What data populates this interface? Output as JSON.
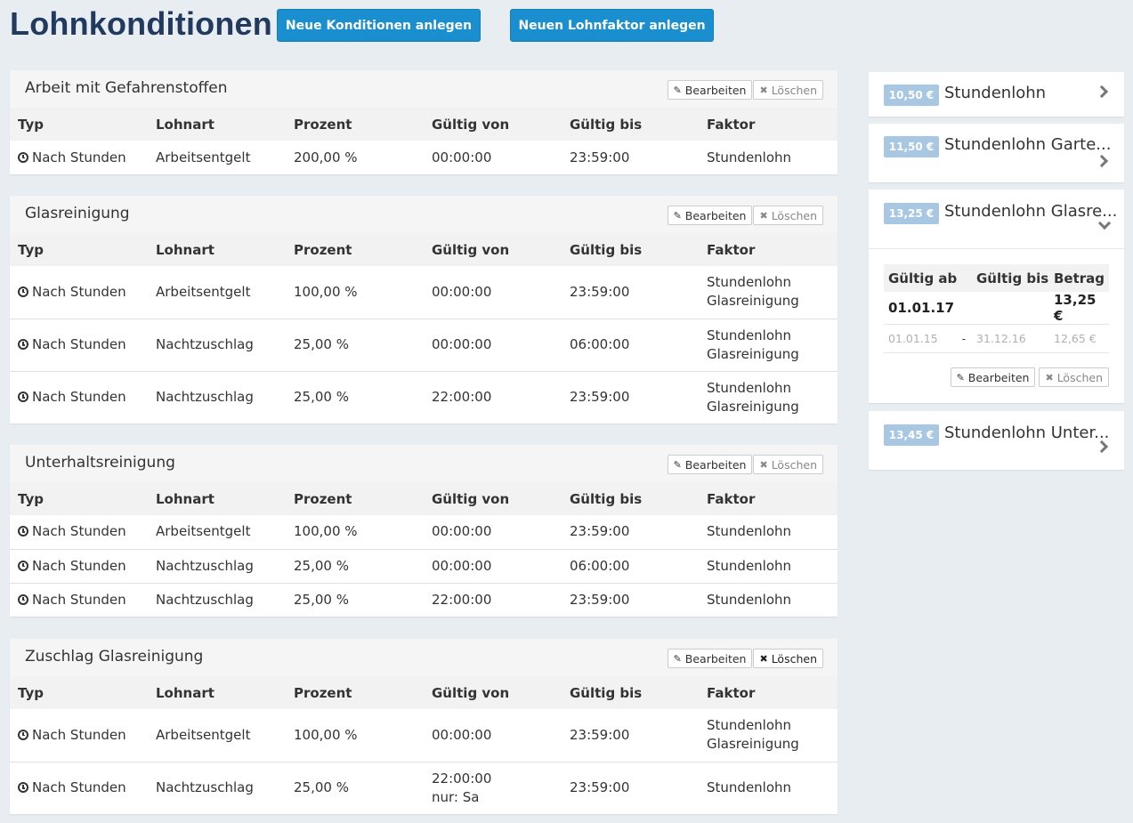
{
  "header": {
    "title": "Lohnkonditionen",
    "new_conditions_label": "Neue Konditionen anlegen",
    "new_factor_label": "Neuen Lohnfaktor anlegen"
  },
  "common": {
    "edit_label": "Bearbeiten",
    "delete_label": "Löschen",
    "columns": [
      "Typ",
      "Lohnart",
      "Prozent",
      "Gültig von",
      "Gültig bis",
      "Faktor"
    ]
  },
  "conditions": [
    {
      "title": "Arbeit mit Gefahrenstoffen",
      "rows": [
        {
          "typ": "Nach Stunden",
          "lohnart": "Arbeitsentgelt",
          "prozent": "200,00 %",
          "von": "00:00:00",
          "von2": "",
          "bis": "23:59:00",
          "faktor": "Stundenlohn",
          "faktor2": ""
        }
      ]
    },
    {
      "title": "Glasreinigung",
      "rows": [
        {
          "typ": "Nach Stunden",
          "lohnart": "Arbeitsentgelt",
          "prozent": "100,00 %",
          "von": "00:00:00",
          "von2": "",
          "bis": "23:59:00",
          "faktor": "Stundenlohn",
          "faktor2": "Glasreinigung"
        },
        {
          "typ": "Nach Stunden",
          "lohnart": "Nachtzuschlag",
          "prozent": "25,00 %",
          "von": "00:00:00",
          "von2": "",
          "bis": "06:00:00",
          "faktor": "Stundenlohn",
          "faktor2": "Glasreinigung"
        },
        {
          "typ": "Nach Stunden",
          "lohnart": "Nachtzuschlag",
          "prozent": "25,00 %",
          "von": "22:00:00",
          "von2": "",
          "bis": "23:59:00",
          "faktor": "Stundenlohn",
          "faktor2": "Glasreinigung"
        }
      ]
    },
    {
      "title": "Unterhaltsreinigung",
      "rows": [
        {
          "typ": "Nach Stunden",
          "lohnart": "Arbeitsentgelt",
          "prozent": "100,00 %",
          "von": "00:00:00",
          "von2": "",
          "bis": "23:59:00",
          "faktor": "Stundenlohn",
          "faktor2": ""
        },
        {
          "typ": "Nach Stunden",
          "lohnart": "Nachtzuschlag",
          "prozent": "25,00 %",
          "von": "00:00:00",
          "von2": "",
          "bis": "06:00:00",
          "faktor": "Stundenlohn",
          "faktor2": ""
        },
        {
          "typ": "Nach Stunden",
          "lohnart": "Nachtzuschlag",
          "prozent": "25,00 %",
          "von": "22:00:00",
          "von2": "",
          "bis": "23:59:00",
          "faktor": "Stundenlohn",
          "faktor2": ""
        }
      ]
    },
    {
      "title": "Zuschlag Glasreinigung",
      "rows": [
        {
          "typ": "Nach Stunden",
          "lohnart": "Arbeitsentgelt",
          "prozent": "100,00 %",
          "von": "00:00:00",
          "von2": "",
          "bis": "23:59:00",
          "faktor": "Stundenlohn",
          "faktor2": "Glasreinigung"
        },
        {
          "typ": "Nach Stunden",
          "lohnart": "Nachtzuschlag",
          "prozent": "25,00 %",
          "von": "22:00:00",
          "von2": "nur: Sa",
          "bis": "23:59:00",
          "faktor": "Stundenlohn",
          "faktor2": ""
        }
      ]
    }
  ],
  "factors": [
    {
      "price": "10,50 €",
      "name": "Stundenlohn",
      "expanded": false
    },
    {
      "price": "11,50 €",
      "name": "Stundenlohn Garte...",
      "expanded": false
    },
    {
      "price": "13,25 €",
      "name": "Stundenlohn Glasre...",
      "expanded": true
    },
    {
      "price": "13,45 €",
      "name": "Stundenlohn Unter...",
      "expanded": false
    }
  ],
  "factor_history": {
    "columns": [
      "Gültig ab",
      "Gültig bis",
      "Betrag"
    ],
    "current": {
      "from": "01.01.17",
      "to": "",
      "amount": "13,25 €"
    },
    "previous": {
      "from": "01.01.15",
      "sep": "-",
      "to": "31.12.16",
      "amount": "12,65 €"
    }
  },
  "colors": {
    "primary_button": "#1a8fcf",
    "title": "#223a5e",
    "badge": "#a8c7e2",
    "background": "#e8edf2"
  }
}
